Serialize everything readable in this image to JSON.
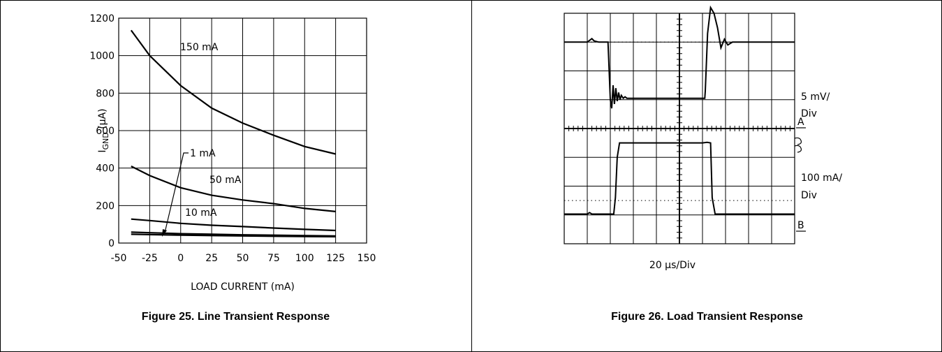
{
  "chart_data": [
    {
      "type": "line",
      "caption": "Figure 25. Line Transient Response",
      "xlabel": "LOAD CURRENT (mA)",
      "ylabel": {
        "main": "I",
        "sub": "GND",
        "unit": " (μA)"
      },
      "xlim": [
        -50,
        150
      ],
      "ylim": [
        0,
        1200
      ],
      "xticks": [
        -50,
        -25,
        0,
        25,
        50,
        75,
        100,
        125,
        150
      ],
      "yticks": [
        0,
        200,
        400,
        600,
        800,
        1000,
        1200
      ],
      "grid": true,
      "series": [
        {
          "name": "150 mA",
          "x": [
            -40,
            -25,
            0,
            25,
            50,
            75,
            100,
            125
          ],
          "y": [
            1135,
            1000,
            840,
            720,
            640,
            575,
            515,
            475
          ]
        },
        {
          "name": "50 mA",
          "x": [
            -40,
            -25,
            0,
            25,
            50,
            75,
            100,
            125
          ],
          "y": [
            410,
            360,
            295,
            255,
            230,
            210,
            185,
            168
          ]
        },
        {
          "name": "10 mA",
          "x": [
            -40,
            -25,
            0,
            25,
            50,
            75,
            100,
            125
          ],
          "y": [
            128,
            120,
            105,
            95,
            88,
            80,
            73,
            67
          ]
        },
        {
          "name": "1 mA",
          "x": [
            -40,
            -25,
            0,
            25,
            50,
            75,
            100,
            125
          ],
          "y": [
            58,
            55,
            50,
            47,
            44,
            42,
            40,
            38
          ]
        },
        {
          "name": "",
          "x": [
            -40,
            -25,
            0,
            25,
            50,
            75,
            100,
            125
          ],
          "y": [
            47,
            45,
            42,
            40,
            38,
            36,
            35,
            34
          ]
        }
      ],
      "annotations": [
        "150 mA",
        "50 mA",
        "10 mA",
        "1 mA"
      ]
    },
    {
      "type": "line",
      "caption": "Figure 26. Load Transient Response",
      "xlabel": "20 μs/Div",
      "xlim": [
        0,
        10
      ],
      "ylim": [
        0,
        8
      ],
      "grid": true,
      "scale_labels": [
        {
          "line1": "5 mV/",
          "line2": "Div"
        },
        {
          "line1": "100 mA/",
          "line2": "Div"
        }
      ],
      "trace_labels": [
        "A",
        "B"
      ],
      "series": [
        {
          "name": "A",
          "x": [
            0,
            1.0,
            1.2,
            1.3,
            1.5,
            1.9,
            2.0,
            2.06,
            2.12,
            2.18,
            2.24,
            2.3,
            2.36,
            2.42,
            2.48,
            2.56,
            2.64,
            2.72,
            2.9,
            3.2,
            6.1,
            6.12,
            6.22,
            6.35,
            6.5,
            6.65,
            6.8,
            6.95,
            7.1,
            7.3,
            7.5,
            10
          ],
          "y": [
            7.0,
            7.0,
            7.12,
            7.04,
            7.0,
            7.0,
            5.0,
            4.7,
            5.5,
            4.85,
            5.4,
            4.95,
            5.25,
            5.0,
            5.15,
            5.05,
            5.1,
            5.05,
            5.05,
            5.05,
            5.05,
            5.3,
            7.3,
            8.2,
            8.0,
            7.5,
            6.8,
            7.1,
            6.9,
            7.0,
            7.0,
            7.0
          ]
        },
        {
          "name": "B",
          "x": [
            0,
            1.0,
            1.1,
            1.2,
            1.3,
            2.15,
            2.22,
            2.3,
            2.4,
            6.0,
            6.2,
            6.35,
            6.42,
            6.55,
            10
          ],
          "y": [
            1.03,
            1.03,
            1.08,
            1.03,
            1.03,
            1.03,
            1.6,
            3.0,
            3.5,
            3.5,
            3.52,
            3.5,
            1.6,
            1.03,
            1.03
          ]
        }
      ]
    }
  ]
}
